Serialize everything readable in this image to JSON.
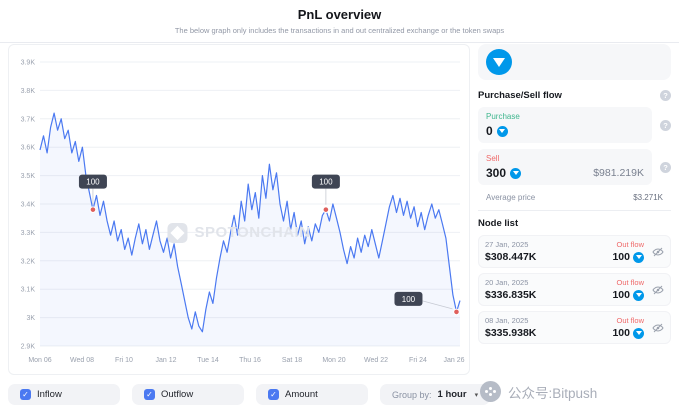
{
  "header": {
    "title": "PnL overview",
    "subtitle": "The below graph only includes the transactions in and out centralized exchange or the token swaps"
  },
  "chart_data": {
    "type": "line",
    "title": "PnL overview",
    "watermark": "SPOTONCHAIN",
    "x_labels": [
      "Mon 06",
      "Wed 08",
      "Fri 10",
      "Jan 12",
      "Tue 14",
      "Thu 16",
      "Sat 18",
      "Mon 20",
      "Wed 22",
      "Fri 24",
      "Jan 26"
    ],
    "y_ticks": [
      "3.9K",
      "3.8K",
      "3.7K",
      "3.6K",
      "3.5K",
      "3.4K",
      "3.3K",
      "3.2K",
      "3.1K",
      "3K",
      "2.9K"
    ],
    "ylim": [
      2.9,
      3.9
    ],
    "grid": true,
    "series": [
      {
        "name": "Amount",
        "color": "#4b79f1",
        "values": [
          3.59,
          3.64,
          3.58,
          3.67,
          3.72,
          3.66,
          3.7,
          3.63,
          3.66,
          3.58,
          3.62,
          3.55,
          3.6,
          3.5,
          3.44,
          3.38,
          3.43,
          3.36,
          3.41,
          3.34,
          3.29,
          3.34,
          3.27,
          3.31,
          3.24,
          3.28,
          3.22,
          3.28,
          3.33,
          3.26,
          3.31,
          3.24,
          3.29,
          3.34,
          3.27,
          3.23,
          3.28,
          3.21,
          3.26,
          3.18,
          3.12,
          3.06,
          3.0,
          2.96,
          3.02,
          2.97,
          2.95,
          3.03,
          3.09,
          3.05,
          3.14,
          3.21,
          3.27,
          3.23,
          3.3,
          3.36,
          3.29,
          3.41,
          3.34,
          3.47,
          3.38,
          3.44,
          3.35,
          3.5,
          3.42,
          3.54,
          3.45,
          3.51,
          3.4,
          3.34,
          3.41,
          3.31,
          3.37,
          3.29,
          3.34,
          3.26,
          3.32,
          3.27,
          3.33,
          3.3,
          3.36,
          3.38,
          3.34,
          3.4,
          3.35,
          3.3,
          3.24,
          3.19,
          3.25,
          3.21,
          3.28,
          3.23,
          3.29,
          3.25,
          3.31,
          3.26,
          3.21,
          3.27,
          3.33,
          3.39,
          3.43,
          3.37,
          3.42,
          3.36,
          3.41,
          3.35,
          3.39,
          3.32,
          3.37,
          3.31,
          3.36,
          3.4,
          3.35,
          3.38,
          3.33,
          3.28,
          3.18,
          3.08,
          3.02,
          3.06
        ]
      }
    ],
    "annotations": [
      {
        "label": "100",
        "index": 15,
        "placement": "above"
      },
      {
        "label": "100",
        "index": 81,
        "placement": "above"
      },
      {
        "label": "100",
        "index": 118,
        "placement": "left"
      }
    ]
  },
  "sidebar": {
    "flow_section": {
      "heading": "Purchase/Sell flow",
      "purchase": {
        "label": "Purchase",
        "value": "0"
      },
      "sell": {
        "label": "Sell",
        "value": "300",
        "usd": "$981.219K"
      },
      "average_price": {
        "label": "Average price",
        "value": "$3.271K"
      }
    },
    "node_list": {
      "heading": "Node list",
      "rows": [
        {
          "date": "27 Jan, 2025",
          "usd": "$308.447K",
          "flow": "Out flow",
          "amount": "100"
        },
        {
          "date": "20 Jan, 2025",
          "usd": "$336.835K",
          "flow": "Out flow",
          "amount": "100"
        },
        {
          "date": "08 Jan, 2025",
          "usd": "$335.938K",
          "flow": "Out flow",
          "amount": "100"
        }
      ]
    }
  },
  "controls": {
    "inflow": {
      "label": "Inflow",
      "checked": true
    },
    "outflow": {
      "label": "Outflow",
      "checked": true
    },
    "amount": {
      "label": "Amount",
      "checked": true
    },
    "group_by": {
      "label": "Group by:",
      "value": "1 hour"
    }
  },
  "watermark_footer": {
    "text": "公众号:Bitpush"
  },
  "icons": {
    "check": "✓",
    "chevron_down": "▾",
    "help": "?"
  },
  "colors": {
    "accent": "#4b79f1",
    "ton_blue": "#0098ea",
    "purchase_green": "#3fb68e",
    "sell_red": "#ef6a6a",
    "tooltip_bg": "#3f4554"
  }
}
